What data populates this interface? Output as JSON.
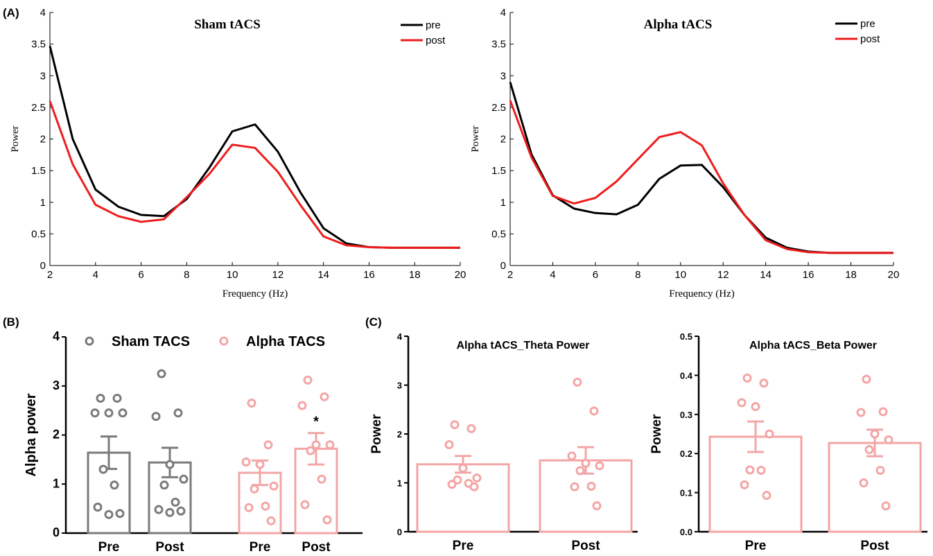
{
  "panel_labels": {
    "a": "(A)",
    "b": "(B)",
    "c": "(C)"
  },
  "colors": {
    "pre": "#000000",
    "post": "#ee1c1c",
    "sham": "#7a7a7a",
    "alpha": "#f4a5a5"
  },
  "chart_data": [
    {
      "id": "sham_line",
      "type": "line",
      "title": "Sham tACS",
      "xlabel": "Frequency (Hz)",
      "ylabel": "Power",
      "xlim": [
        2,
        20
      ],
      "ylim": [
        0,
        4
      ],
      "xticks": [
        "2",
        "4",
        "6",
        "8",
        "10",
        "12",
        "14",
        "16",
        "18",
        "20"
      ],
      "yticks": [
        "0",
        "0.5",
        "1",
        "1.5",
        "2",
        "2.5",
        "3",
        "3.5",
        "4"
      ],
      "legend": "top-right",
      "x": [
        2,
        3,
        4,
        5,
        6,
        7,
        8,
        9,
        10,
        11,
        12,
        13,
        14,
        15,
        16,
        17,
        18,
        19,
        20
      ],
      "series": [
        {
          "name": "pre",
          "values": [
            3.47,
            2.0,
            1.2,
            0.93,
            0.8,
            0.78,
            1.05,
            1.55,
            2.12,
            2.23,
            1.8,
            1.15,
            0.59,
            0.35,
            0.29,
            0.28,
            0.28,
            0.28,
            0.28
          ]
        },
        {
          "name": "post",
          "values": [
            2.6,
            1.6,
            0.96,
            0.78,
            0.69,
            0.73,
            1.08,
            1.45,
            1.91,
            1.86,
            1.48,
            0.95,
            0.46,
            0.32,
            0.29,
            0.28,
            0.28,
            0.28,
            0.28
          ]
        }
      ]
    },
    {
      "id": "alpha_line",
      "type": "line",
      "title": "Alpha tACS",
      "xlabel": "Frequency (Hz)",
      "ylabel": "Power",
      "xlim": [
        2,
        20
      ],
      "ylim": [
        0,
        4
      ],
      "xticks": [
        "2",
        "4",
        "6",
        "8",
        "10",
        "12",
        "14",
        "16",
        "18",
        "20"
      ],
      "yticks": [
        "0",
        "0.5",
        "1",
        "1.5",
        "2",
        "2.5",
        "3",
        "3.5",
        "4"
      ],
      "legend": "top-right",
      "x": [
        2,
        3,
        4,
        5,
        6,
        7,
        8,
        9,
        10,
        11,
        12,
        13,
        14,
        15,
        16,
        17,
        18,
        19,
        20
      ],
      "series": [
        {
          "name": "pre",
          "values": [
            2.9,
            1.76,
            1.11,
            0.9,
            0.83,
            0.81,
            0.96,
            1.37,
            1.58,
            1.59,
            1.24,
            0.8,
            0.44,
            0.28,
            0.22,
            0.2,
            0.2,
            0.2,
            0.2
          ]
        },
        {
          "name": "post",
          "values": [
            2.61,
            1.71,
            1.1,
            0.98,
            1.07,
            1.33,
            1.68,
            2.03,
            2.11,
            1.9,
            1.3,
            0.8,
            0.4,
            0.26,
            0.21,
            0.2,
            0.2,
            0.2,
            0.2
          ]
        }
      ]
    },
    {
      "id": "alpha_power_bar",
      "type": "bar",
      "ylabel": "Alpha power",
      "ylim": [
        0,
        4
      ],
      "yticks": [
        "0",
        "1",
        "2",
        "3",
        "4"
      ],
      "legend": "top",
      "groups": [
        {
          "name": "Sham TACS",
          "color": "sham",
          "bars": [
            {
              "label": "Pre",
              "mean": 1.64,
              "sem": 0.33,
              "points": [
                2.75,
                2.75,
                2.45,
                2.45,
                2.45,
                1.3,
                0.98,
                0.53,
                0.4,
                0.38
              ]
            },
            {
              "label": "Post",
              "mean": 1.44,
              "sem": 0.3,
              "points": [
                3.25,
                2.45,
                2.38,
                1.4,
                1.1,
                0.98,
                0.63,
                0.48,
                0.45,
                0.42
              ]
            }
          ]
        },
        {
          "name": "Alpha TACS",
          "color": "alpha",
          "bars": [
            {
              "label": "Pre",
              "mean": 1.23,
              "sem": 0.25,
              "points": [
                2.65,
                1.8,
                1.45,
                1.4,
                0.96,
                0.9,
                0.55,
                0.52,
                0.25
              ]
            },
            {
              "label": "Post",
              "mean": 1.72,
              "sem": 0.32,
              "annotation": "*",
              "points": [
                3.12,
                2.78,
                2.6,
                1.8,
                1.8,
                1.68,
                1.1,
                0.58,
                0.27
              ]
            }
          ]
        }
      ]
    },
    {
      "id": "theta_bar",
      "type": "bar",
      "title": "Alpha tACS_Theta Power",
      "ylabel": "Power",
      "ylim": [
        0,
        4
      ],
      "yticks": [
        "0",
        "1",
        "2",
        "3",
        "4"
      ],
      "color": "alpha",
      "bars": [
        {
          "label": "Pre",
          "mean": 1.38,
          "sem": 0.17,
          "points": [
            2.19,
            2.11,
            1.78,
            1.3,
            1.1,
            1.06,
            0.99,
            0.97,
            0.92
          ]
        },
        {
          "label": "Post",
          "mean": 1.46,
          "sem": 0.27,
          "points": [
            3.06,
            2.47,
            1.55,
            1.4,
            1.35,
            1.25,
            0.93,
            0.92,
            0.53
          ]
        }
      ]
    },
    {
      "id": "beta_bar",
      "type": "bar",
      "title": "Alpha tACS_Beta Power",
      "ylabel": "Power",
      "ylim": [
        0,
        0.5
      ],
      "yticks": [
        "0.0",
        "0.1",
        "0.2",
        "0.3",
        "0.4",
        "0.5"
      ],
      "color": "alpha",
      "bars": [
        {
          "label": "Pre",
          "mean": 0.243,
          "sem": 0.039,
          "points": [
            0.393,
            0.38,
            0.33,
            0.32,
            0.25,
            0.158,
            0.157,
            0.12,
            0.093
          ]
        },
        {
          "label": "Post",
          "mean": 0.227,
          "sem": 0.034,
          "points": [
            0.39,
            0.307,
            0.305,
            0.25,
            0.235,
            0.21,
            0.157,
            0.125,
            0.066
          ]
        }
      ]
    }
  ]
}
